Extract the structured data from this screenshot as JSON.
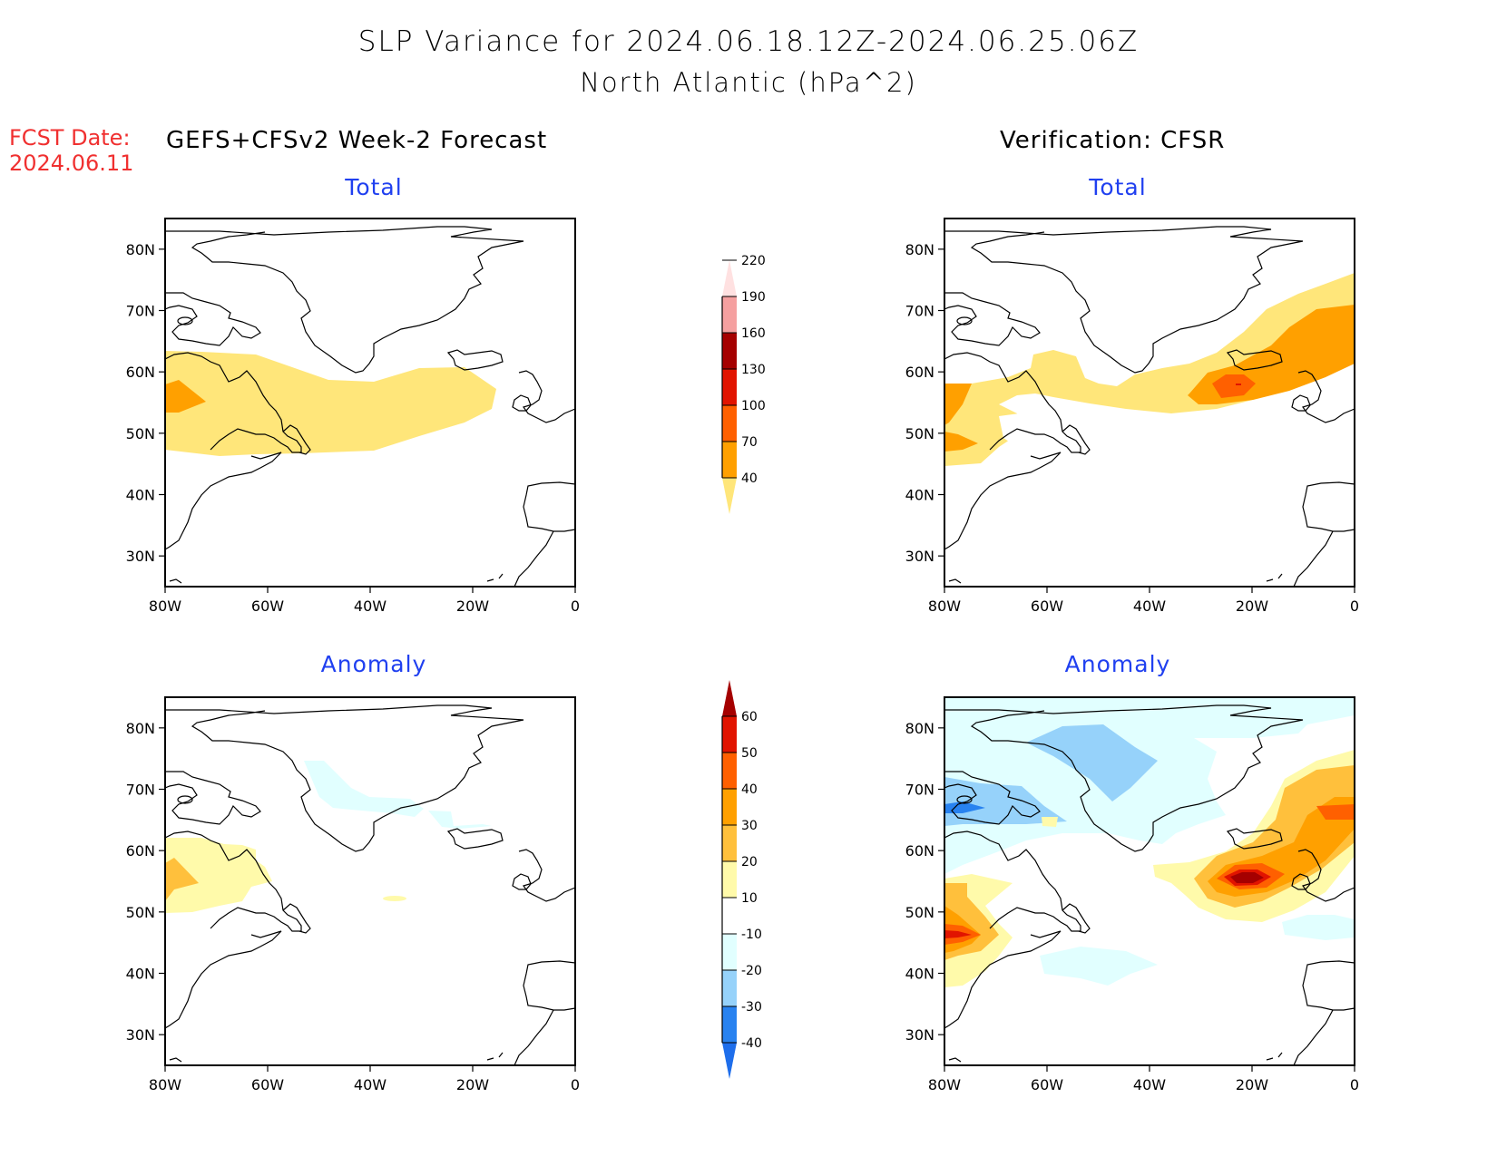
{
  "title": {
    "line1": "SLP Variance for 2024.06.18.12Z-2024.06.25.06Z",
    "line2": "North Atlantic (hPa^2)"
  },
  "forecast_date": {
    "label": "FCST Date:",
    "value": "2024.06.11"
  },
  "columns": {
    "left_header": "GEFS+CFSv2 Week-2 Forecast",
    "right_header": "Verification: CFSR"
  },
  "panel_titles": {
    "total": "Total",
    "anomaly": "Anomaly"
  },
  "colors": {
    "subtitle": "#2040f0",
    "fcst_date": "#f03030",
    "coast": "#000000"
  },
  "chart_data": [
    {
      "type": "heatmap",
      "name": "forecast-total",
      "title": "Total",
      "column": "GEFS+CFSv2 Week-2 Forecast",
      "xlabel": "",
      "ylabel": "",
      "x_ticks": [
        "80W",
        "60W",
        "40W",
        "20W",
        "0"
      ],
      "y_ticks": [
        "30N",
        "40N",
        "50N",
        "60N",
        "70N",
        "80N"
      ],
      "xlim": [
        -80,
        0
      ],
      "ylim": [
        25,
        85
      ],
      "features": [
        {
          "level": "40-70",
          "description": "zonal band ~47N-63N from 80W to ~15W"
        },
        {
          "level": "70-100",
          "description": "small core near 55N, 77W-75W"
        }
      ]
    },
    {
      "type": "heatmap",
      "name": "verification-total",
      "title": "Total",
      "column": "Verification: CFSR",
      "x_ticks": [
        "80W",
        "60W",
        "40W",
        "20W",
        "0"
      ],
      "y_ticks": [
        "30N",
        "40N",
        "50N",
        "60N",
        "70N",
        "80N"
      ],
      "xlim": [
        -80,
        0
      ],
      "ylim": [
        25,
        85
      ],
      "features": [
        {
          "level": "40-70",
          "description": "band from 80W,42-58N extending NE to 75N at 0"
        },
        {
          "level": "70-100",
          "description": "core around 55N 22W extending NE to 65N 0; patches near 80W 53N and 45N"
        },
        {
          "level": "100-130",
          "description": "core near 55N 22W"
        },
        {
          "level": "130-160",
          "description": "point maximum ~55N 22W"
        }
      ]
    },
    {
      "type": "heatmap",
      "name": "forecast-anomaly",
      "title": "Anomaly",
      "column": "GEFS+CFSv2 Week-2 Forecast",
      "x_ticks": [
        "80W",
        "60W",
        "40W",
        "20W",
        "0"
      ],
      "y_ticks": [
        "30N",
        "40N",
        "50N",
        "60N",
        "70N",
        "80N"
      ],
      "xlim": [
        -80,
        0
      ],
      "ylim": [
        25,
        85
      ],
      "features": [
        {
          "level": "10-20",
          "description": "patch 50N-62N, 80W-60W; small spot near 52N 35W"
        },
        {
          "level": "20-30",
          "description": "core near 55N 77W"
        },
        {
          "level": "-20--10",
          "description": "narrow strip from 73N 52W to 66N 18W"
        }
      ]
    },
    {
      "type": "heatmap",
      "name": "verification-anomaly",
      "title": "Anomaly",
      "column": "Verification: CFSR",
      "x_ticks": [
        "80W",
        "60W",
        "40W",
        "20W",
        "0"
      ],
      "y_ticks": [
        "30N",
        "40N",
        "50N",
        "60N",
        "70N",
        "80N"
      ],
      "xlim": [
        -80,
        0
      ],
      "ylim": [
        25,
        85
      ],
      "features": [
        {
          "level": "-20--10",
          "description": "broad area over Greenland / Baffin 62N-85N, 80W-25W; patch near 41N 45W; patch near 49N 5W"
        },
        {
          "level": "-30--20",
          "description": "central Greenland 70N-80N, 55W-40W; Baffin 64N-72N, 80W-62W"
        },
        {
          "level": "-40--30",
          "description": "small core near 67N 77W"
        },
        {
          "level": "10-60",
          "description": "positive max ~55N 22W (>50) extending NE to 70N 0"
        },
        {
          "level": "10-60",
          "description": "positive max ~45N 78W (40-50)"
        }
      ]
    }
  ],
  "colorbars": {
    "total": {
      "levels": [
        "40",
        "70",
        "100",
        "130",
        "160",
        "190",
        "220"
      ],
      "colors": [
        "#ffe67a",
        "#ffa000",
        "#ff6000",
        "#e11400",
        "#a50000",
        "#f5a0a0",
        "#ffe1e1"
      ]
    },
    "anomaly": {
      "levels": [
        "-40",
        "-30",
        "-20",
        "-10",
        "10",
        "20",
        "30",
        "40",
        "50",
        "60"
      ],
      "colors": [
        "#1e6eeb",
        "#2882f0",
        "#96d2fa",
        "#e1ffff",
        "#ffffff",
        "#fffaaa",
        "#ffc03c",
        "#ffa000",
        "#ff6000",
        "#e11400",
        "#a50000"
      ]
    }
  }
}
